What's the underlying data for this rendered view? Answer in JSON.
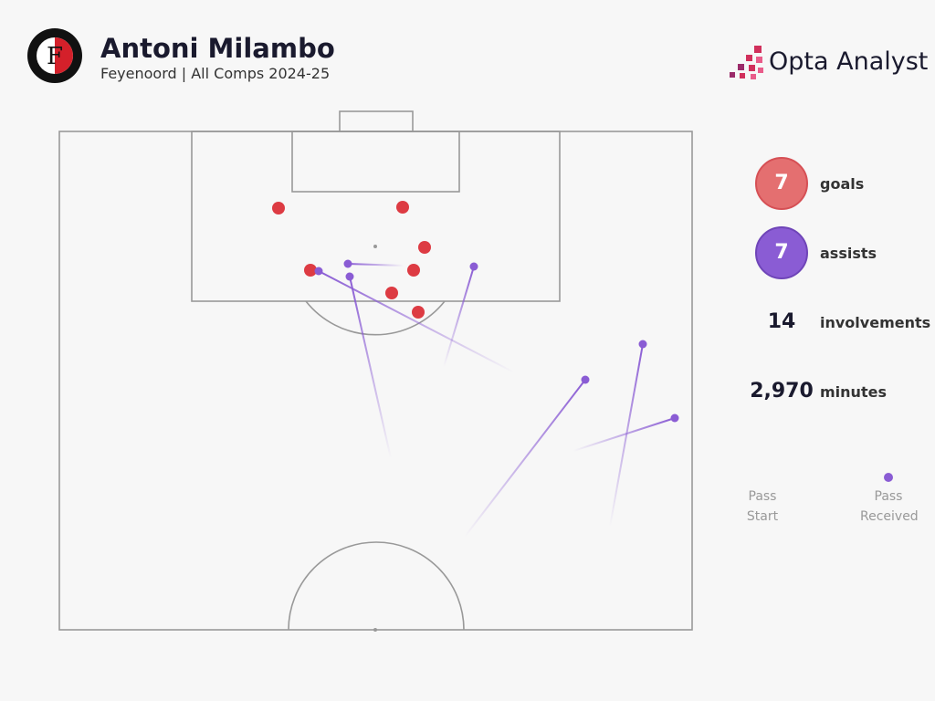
{
  "header": {
    "title": "Antoni Milambo",
    "subtitle": "Feyenoord | All Comps 2024-25",
    "brand": "Opta Analyst"
  },
  "stats": [
    {
      "value": "7",
      "label": "goals"
    },
    {
      "value": "7",
      "label": "assists"
    },
    {
      "value": "14",
      "label": "involvements"
    },
    {
      "value": "2,970",
      "label": "minutes"
    }
  ],
  "legend": {
    "start": "Pass Start",
    "end": "Pass Received"
  }
}
